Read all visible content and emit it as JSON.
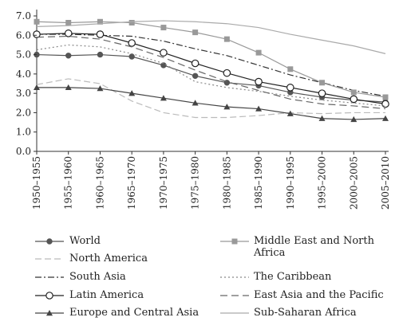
{
  "chart_data": {
    "type": "line",
    "categories": [
      "1950–1955",
      "1955–1960",
      "1960–1965",
      "1965–1970",
      "1970–1975",
      "1975–1980",
      "1980–1985",
      "1985–1990",
      "1990–1995",
      "1995–2000",
      "2000–2005",
      "2005–2010"
    ],
    "yticks": [
      "0.0",
      "1.0",
      "2.0",
      "3.0",
      "4.0",
      "5.0",
      "6.0",
      "7.0"
    ],
    "ylim": [
      0,
      7
    ],
    "grid": false,
    "legend_position": "bottom",
    "series": [
      {
        "name": "World",
        "color": "#555555",
        "dash": "",
        "marker": "circle-filled",
        "values": [
          5.0,
          4.95,
          5.0,
          4.9,
          4.45,
          3.9,
          3.55,
          3.4,
          3.05,
          2.8,
          2.65,
          2.55
        ]
      },
      {
        "name": "North America",
        "color": "#bbbbbb",
        "dash": "8,4",
        "marker": "none",
        "values": [
          3.45,
          3.75,
          3.5,
          2.6,
          2.0,
          1.75,
          1.75,
          1.85,
          2.0,
          1.95,
          2.0,
          2.0
        ]
      },
      {
        "name": "South Asia",
        "color": "#333333",
        "dash": "8,3,2,3",
        "marker": "none",
        "values": [
          6.05,
          6.05,
          6.0,
          5.95,
          5.7,
          5.3,
          4.95,
          4.45,
          3.95,
          3.55,
          3.15,
          2.85
        ]
      },
      {
        "name": "Latin America",
        "color": "#222222",
        "dash": "",
        "marker": "circle-open",
        "values": [
          6.05,
          6.1,
          6.05,
          5.6,
          5.1,
          4.55,
          4.05,
          3.6,
          3.3,
          3.0,
          2.7,
          2.45
        ]
      },
      {
        "name": "Europe and Central Asia",
        "color": "#444444",
        "dash": "",
        "marker": "triangle",
        "values": [
          3.3,
          3.3,
          3.25,
          3.0,
          2.75,
          2.5,
          2.3,
          2.2,
          1.95,
          1.7,
          1.65,
          1.7
        ]
      },
      {
        "name": "Middle East and North Africa",
        "color": "#999999",
        "dash": "",
        "marker": "square",
        "values": [
          6.7,
          6.65,
          6.7,
          6.65,
          6.4,
          6.15,
          5.8,
          5.1,
          4.25,
          3.55,
          3.05,
          2.8
        ]
      },
      {
        "name": "The Caribbean",
        "color": "#888888",
        "dash": "2,3",
        "marker": "none",
        "values": [
          5.25,
          5.5,
          5.4,
          5.05,
          4.55,
          3.6,
          3.3,
          3.1,
          2.85,
          2.65,
          2.5,
          2.35
        ]
      },
      {
        "name": "East Asia and the Pacific",
        "color": "#666666",
        "dash": "9,5",
        "marker": "none",
        "values": [
          5.9,
          5.95,
          5.8,
          5.4,
          4.85,
          4.2,
          3.6,
          3.15,
          2.7,
          2.45,
          2.35,
          2.2
        ]
      },
      {
        "name": "Sub-Saharan Africa",
        "color": "#aaaaaa",
        "dash": "",
        "marker": "none",
        "values": [
          6.45,
          6.5,
          6.6,
          6.7,
          6.75,
          6.7,
          6.6,
          6.4,
          6.05,
          5.75,
          5.45,
          5.05
        ]
      }
    ],
    "legend": [
      {
        "series": "World",
        "label": "World"
      },
      {
        "series": "North America",
        "label": "North America"
      },
      {
        "series": "South Asia",
        "label": "South Asia"
      },
      {
        "series": "Latin America",
        "label": "Latin America"
      },
      {
        "series": "Europe and Central Asia",
        "label": "Europe and Central Asia"
      },
      {
        "series": "Middle East and North Africa",
        "label_line1": "Middle East and North",
        "label_line2": "Africa"
      },
      {
        "series": "The Caribbean",
        "label": "The Caribbean"
      },
      {
        "series": "East Asia and the Pacific",
        "label": "East Asia and the Pacific"
      },
      {
        "series": "Sub-Saharan Africa",
        "label": "Sub-Saharan Africa"
      }
    ]
  }
}
